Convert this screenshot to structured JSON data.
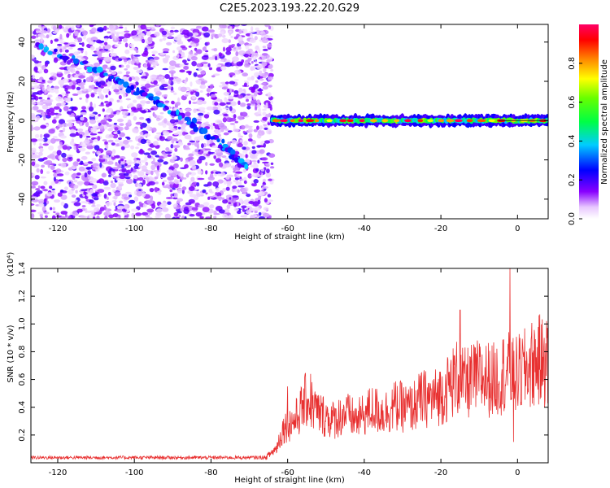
{
  "title": "C2E5.2023.193.22.20.G29",
  "chart_data": [
    {
      "type": "heatmap",
      "xlabel": "Height of straight line (km)",
      "ylabel": "Frequency (Hz)",
      "xlim": [
        -127,
        8
      ],
      "ylim": [
        -50,
        49
      ],
      "x_ticks": [
        -120,
        -100,
        -80,
        -60,
        -40,
        -20,
        0
      ],
      "y_ticks": [
        -40,
        -20,
        0,
        20,
        40
      ],
      "colorbar": {
        "label": "Normalized spectral amplitude",
        "range": [
          0,
          1
        ],
        "ticks": [
          0.0,
          0.2,
          0.4,
          0.6,
          0.8
        ],
        "colormap": "rainbow (purple-blue-cyan-green-yellow-red)"
      },
      "features": [
        {
          "name": "noisy region",
          "x_range": [
            -127,
            -64
          ],
          "y_range": [
            -50,
            49
          ]
        },
        {
          "name": "descending trace",
          "x": [
            -125,
            -108,
            -96,
            -86,
            -76,
            -71
          ],
          "y": [
            38,
            24,
            12,
            0,
            -14,
            -24
          ]
        },
        {
          "name": "horizontal band",
          "x_range": [
            -64,
            8
          ],
          "y": 0,
          "peak_amplitude": 0.9
        }
      ]
    },
    {
      "type": "line",
      "xlabel": "Height of straight line (km)",
      "ylabel": "SNR (10 * v/v)",
      "y_multiplier": "(x10⁴)",
      "xlim": [
        -127,
        8
      ],
      "ylim": [
        0,
        1.4
      ],
      "x_ticks": [
        -120,
        -100,
        -80,
        -60,
        -40,
        -20,
        0
      ],
      "y_ticks": [
        0.2,
        0.4,
        0.6,
        0.8,
        1.0,
        1.2,
        1.4
      ],
      "line_color": "#e83030",
      "series_points": [
        [
          -127,
          0.03
        ],
        [
          -100,
          0.03
        ],
        [
          -80,
          0.03
        ],
        [
          -66,
          0.03
        ],
        [
          -63,
          0.1
        ],
        [
          -61,
          0.25
        ],
        [
          -58,
          0.3
        ],
        [
          -55,
          0.45
        ],
        [
          -52,
          0.35
        ],
        [
          -48,
          0.3
        ],
        [
          -45,
          0.35
        ],
        [
          -42,
          0.3
        ],
        [
          -38,
          0.38
        ],
        [
          -35,
          0.35
        ],
        [
          -32,
          0.4
        ],
        [
          -28,
          0.38
        ],
        [
          -25,
          0.45
        ],
        [
          -22,
          0.45
        ],
        [
          -19,
          0.5
        ],
        [
          -16,
          0.6
        ],
        [
          -14,
          0.55
        ],
        [
          -10,
          0.6
        ],
        [
          -6,
          0.58
        ],
        [
          -3,
          0.65
        ],
        [
          -1,
          0.6
        ],
        [
          2,
          0.65
        ],
        [
          5,
          0.72
        ],
        [
          8,
          0.7
        ]
      ],
      "peaks": [
        [
          -60,
          0.55
        ],
        [
          -54,
          0.64
        ],
        [
          -15,
          1.1
        ],
        [
          -2,
          1.4
        ],
        [
          -1,
          0.15
        ],
        [
          7,
          0.9
        ]
      ]
    }
  ]
}
